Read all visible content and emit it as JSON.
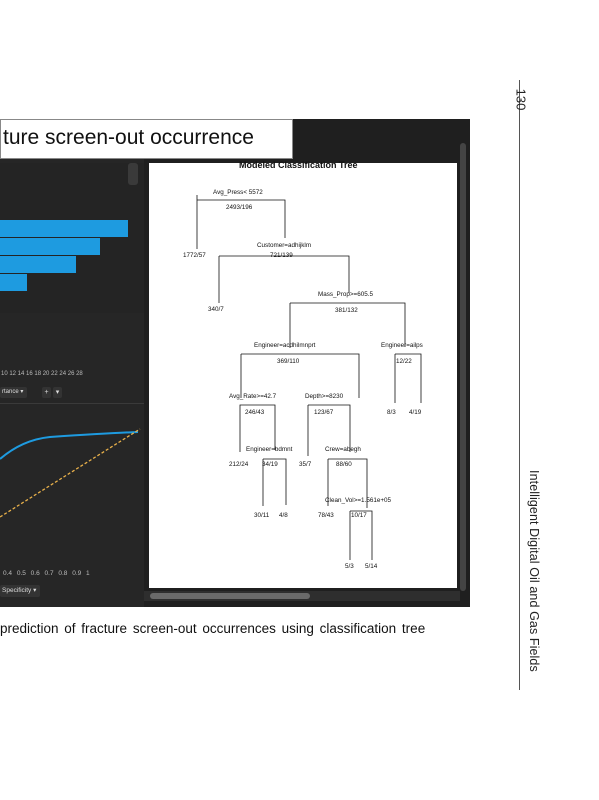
{
  "page": {
    "number": "130",
    "book_title": "Intelligent Digital Oil and Gas Fields"
  },
  "figure": {
    "heading": "ture screen-out occurrence",
    "caption": "prediction of fracture screen-out occurrences using classification tree",
    "left_panel": {
      "bar_relative_values": [
        1.0,
        0.78,
        0.59,
        0.21
      ],
      "importance_axis_ticks": "10 12 14 16 18 20 22 24 26 28",
      "importance_dropdown": "rtance",
      "roc_axis_ticks": "0.4  0.5  0.6  0.7  0.8  0.9  1",
      "roc_dropdown": "Specificity",
      "colors": {
        "bar": "#1e9be0",
        "roc_curve": "#1e9be0",
        "diagonal": "#e8b04a"
      }
    },
    "tree": {
      "title": "Modeled Classification Tree",
      "nodes": {
        "avg_press_split": "Avg_Press< 5572",
        "root_counts": "2493/196",
        "leaf_1772": "1772/57",
        "customer_split": "Customer=adhijklm",
        "customer_counts": "721/139",
        "leaf_340": "340/7",
        "mass_prop_split": "Mass_Prop>=605.5",
        "mass_prop_counts": "381/132",
        "engineer1_split": "Engineer=acdhilmnprt",
        "engineer1_counts": "369/110",
        "engineer2_split": "Engineer=ailps",
        "engineer2_counts": "12/22",
        "avg_rate_split": "Avg_Rate>=42.7",
        "avg_rate_counts": "246/43",
        "depth_split": "Depth>=8230",
        "depth_counts": "123/67",
        "leaf_8_3": "8/3",
        "leaf_4_19": "4/19",
        "leaf_212": "212/24",
        "engineer3_split": "Engineer=bdmnt",
        "engineer3_counts": "34/19",
        "leaf_35_7": "35/7",
        "crew_split": "Crew=abegh",
        "crew_counts": "88/60",
        "leaf_30_11": "30/11",
        "leaf_4_8": "4/8",
        "clean_vol_split": "Clean_Vol>=1.561e+05",
        "leaf_78_43": "78/43",
        "clean_vol_counts": "10/17",
        "leaf_5_3": "5/3",
        "leaf_5_14": "5/14"
      }
    }
  }
}
